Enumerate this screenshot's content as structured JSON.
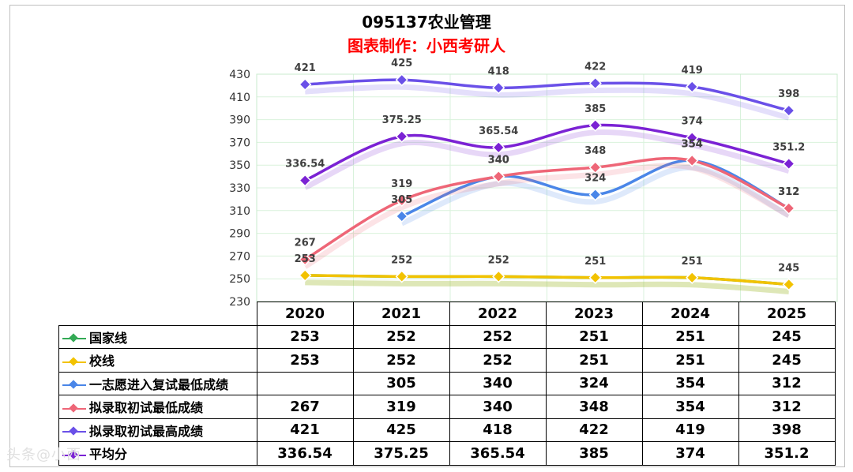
{
  "title": "095137农业管理",
  "subtitle": "图表制作：小西考研人",
  "watermark": "头条@小西",
  "chart_data": {
    "type": "line",
    "categories": [
      "2020",
      "2021",
      "2022",
      "2023",
      "2024",
      "2025"
    ],
    "ylim": [
      230,
      430
    ],
    "yticks": [
      230,
      250,
      270,
      290,
      310,
      330,
      350,
      370,
      390,
      410,
      430
    ],
    "grid": true,
    "legend": "table",
    "series": [
      {
        "name": "国家线",
        "color": "#33aa55",
        "values": [
          253,
          252,
          252,
          251,
          251,
          245
        ]
      },
      {
        "name": "校线",
        "color": "#f2c200",
        "values": [
          253,
          252,
          252,
          251,
          251,
          245
        ]
      },
      {
        "name": "一志愿进入复试最低成绩",
        "color": "#4a86e8",
        "values": [
          null,
          305,
          340,
          324,
          354,
          312
        ]
      },
      {
        "name": "拟录取初试最低成绩",
        "color": "#ee6677",
        "values": [
          267,
          319,
          340,
          348,
          354,
          312
        ]
      },
      {
        "name": "拟录取初试最高成绩",
        "color": "#6a50e8",
        "values": [
          421,
          425,
          418,
          422,
          419,
          398
        ]
      },
      {
        "name": "平均分",
        "color": "#7b22d4",
        "values": [
          336.54,
          375.25,
          365.54,
          385,
          374,
          351.2
        ]
      }
    ]
  },
  "table": {
    "display": [
      [
        "253",
        "252",
        "252",
        "251",
        "251",
        "245"
      ],
      [
        "253",
        "252",
        "252",
        "251",
        "251",
        "245"
      ],
      [
        "",
        "305",
        "340",
        "324",
        "354",
        "312"
      ],
      [
        "267",
        "319",
        "340",
        "348",
        "354",
        "312"
      ],
      [
        "421",
        "425",
        "418",
        "422",
        "419",
        "398"
      ],
      [
        "336.54",
        "375.25",
        "365.54",
        "385",
        "374",
        "351.2"
      ]
    ]
  }
}
